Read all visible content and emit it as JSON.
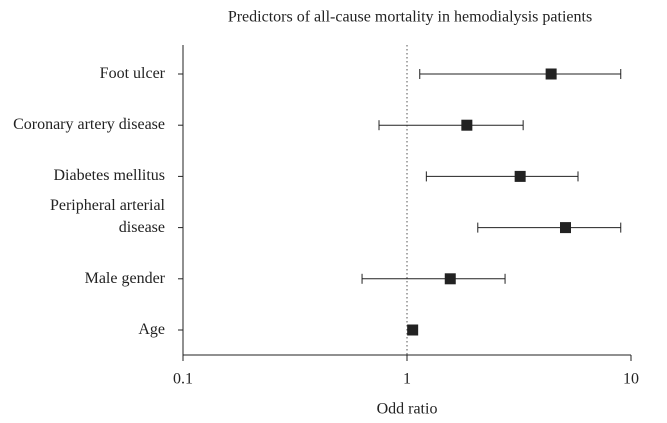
{
  "chart_data": {
    "type": "forest",
    "title": "Predictors of all-cause mortality in hemodialysis patients",
    "xlabel": "Odd ratio",
    "categories": [
      "Foot ulcer",
      "Coronary artery disease",
      "Diabetes mellitus",
      "Peripheral arterial disease",
      "Male gender",
      "Age"
    ],
    "values": [
      4.4,
      1.85,
      3.2,
      5.1,
      1.56,
      1.06
    ],
    "lower": [
      1.14,
      0.75,
      1.22,
      2.07,
      0.63,
      1.03
    ],
    "upper": [
      9.0,
      3.3,
      5.8,
      9.0,
      2.74,
      1.09
    ],
    "color": "#222222",
    "xscale": "log",
    "xlim": [
      0.1,
      10
    ],
    "xticks": [
      0.1,
      1,
      10
    ],
    "reference_line": 1
  }
}
